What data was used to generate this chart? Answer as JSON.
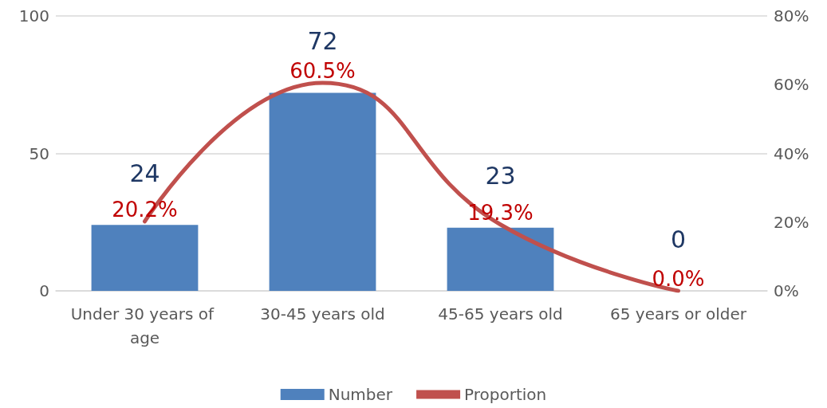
{
  "chart_data": {
    "type": "bar",
    "categories": [
      "Under 30 years of age",
      "30-45 years old",
      "45-65 years old",
      "65 years or older"
    ],
    "series": [
      {
        "name": "Number",
        "color": "#4f81bd",
        "values": [
          24,
          72,
          23,
          0
        ],
        "value_labels": [
          "24",
          "72",
          "23",
          "0"
        ]
      },
      {
        "name": "Proportion",
        "type": "line",
        "axis": "y2",
        "color": "#c0504d",
        "values": [
          20.2,
          60.5,
          19.3,
          0.0
        ],
        "value_labels": [
          "20.2%",
          "60.5%",
          "19.3%",
          "0.0%"
        ]
      }
    ],
    "ylim": [
      0,
      100
    ],
    "yticks": [
      0,
      50,
      100
    ],
    "y2lim": [
      0,
      80
    ],
    "y2ticks": [
      {
        "value": 0,
        "label": "0%"
      },
      {
        "value": 20,
        "label": "20%"
      },
      {
        "value": 40,
        "label": "40%"
      },
      {
        "value": 60,
        "label": "60%"
      },
      {
        "value": 80,
        "label": "80%"
      }
    ],
    "grid": "y",
    "legend": "bottom",
    "marker": "none"
  }
}
